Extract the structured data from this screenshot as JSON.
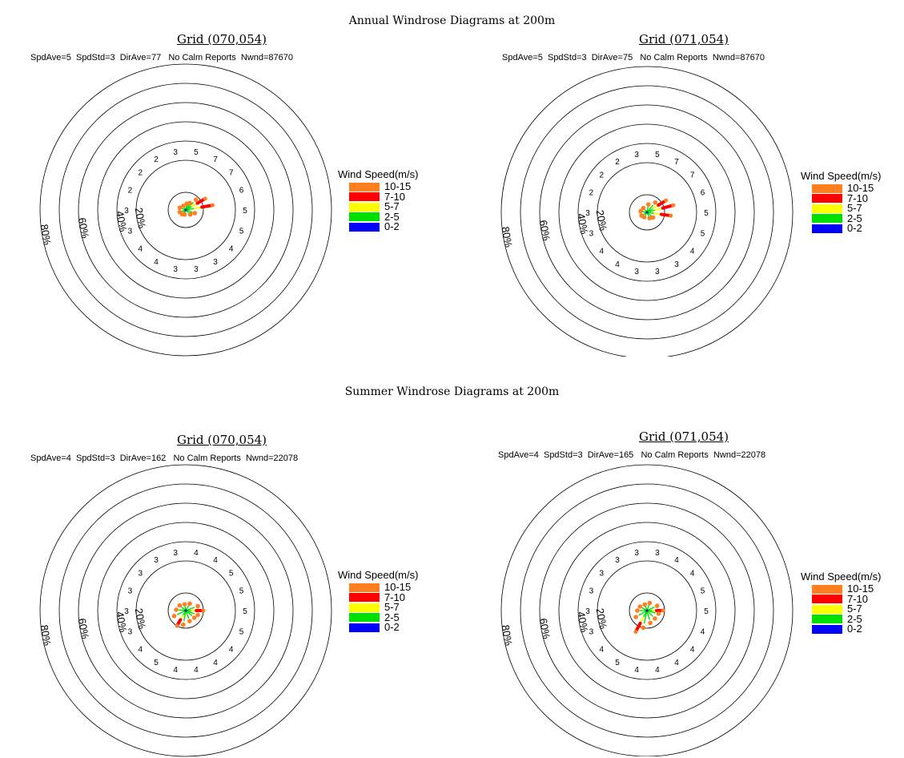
{
  "sections": [
    {
      "title": "Annual Windrose Diagrams at 200m"
    },
    {
      "title": "Summer Windrose Diagrams at 200m"
    }
  ],
  "legend": {
    "title": "Wind Speed(m/s)",
    "bins": [
      {
        "label": "10-15",
        "color": "#ff7f1e"
      },
      {
        "label": "7-10",
        "color": "#ff0000"
      },
      {
        "label": "5-7",
        "color": "#ffff00"
      },
      {
        "label": "2-5",
        "color": "#00e000"
      },
      {
        "label": "0-2",
        "color": "#0000ff"
      }
    ]
  },
  "chart_data": [
    {
      "type": "windrose",
      "grid": "Grid (070,054)",
      "stats": "SpdAve=5  SpdStd=3  DirAve=77   No Calm Reports  Nwnd=87670",
      "ring_labels": [
        "20%",
        "40%",
        "60%",
        "80%"
      ],
      "direction_labels": [
        "5",
        "7",
        "7",
        "6",
        "5",
        "5",
        "4",
        "3",
        "3",
        "3",
        "4",
        "4",
        "3",
        "3",
        "2",
        "2",
        "2",
        "3"
      ]
    },
    {
      "type": "windrose",
      "grid": "Grid (071,054)",
      "stats": "SpdAve=5  SpdStd=3  DirAve=75   No Calm Reports  Nwnd=87670",
      "ring_labels": [
        "20%",
        "40%",
        "60%",
        "80%"
      ],
      "direction_labels": [
        "5",
        "7",
        "7",
        "6",
        "5",
        "5",
        "4",
        "3",
        "3",
        "3",
        "4",
        "4",
        "3",
        "3",
        "2",
        "2",
        "2",
        "3"
      ]
    },
    {
      "type": "windrose",
      "grid": "Grid (070,054)",
      "stats": "SpdAve=4  SpdStd=3  DirAve=162   No Calm Reports  Nwnd=22078",
      "ring_labels": [
        "20%",
        "40%",
        "60%",
        "80%"
      ],
      "direction_labels": [
        "4",
        "4",
        "5",
        "5",
        "5",
        "5",
        "4",
        "4",
        "4",
        "4",
        "5",
        "4",
        "3",
        "3",
        "3",
        "3",
        "3",
        "3"
      ]
    },
    {
      "type": "windrose",
      "grid": "Grid (071,054)",
      "stats": "SpdAve=4  SpdStd=3  DirAve=165   No Calm Reports  Nwnd=22078",
      "ring_labels": [
        "20%",
        "40%",
        "60%",
        "80%"
      ],
      "direction_labels": [
        "3",
        "4",
        "4",
        "5",
        "5",
        "4",
        "4",
        "4",
        "4",
        "4",
        "5",
        "4",
        "3",
        "3",
        "3",
        "3",
        "3",
        "3"
      ]
    }
  ]
}
